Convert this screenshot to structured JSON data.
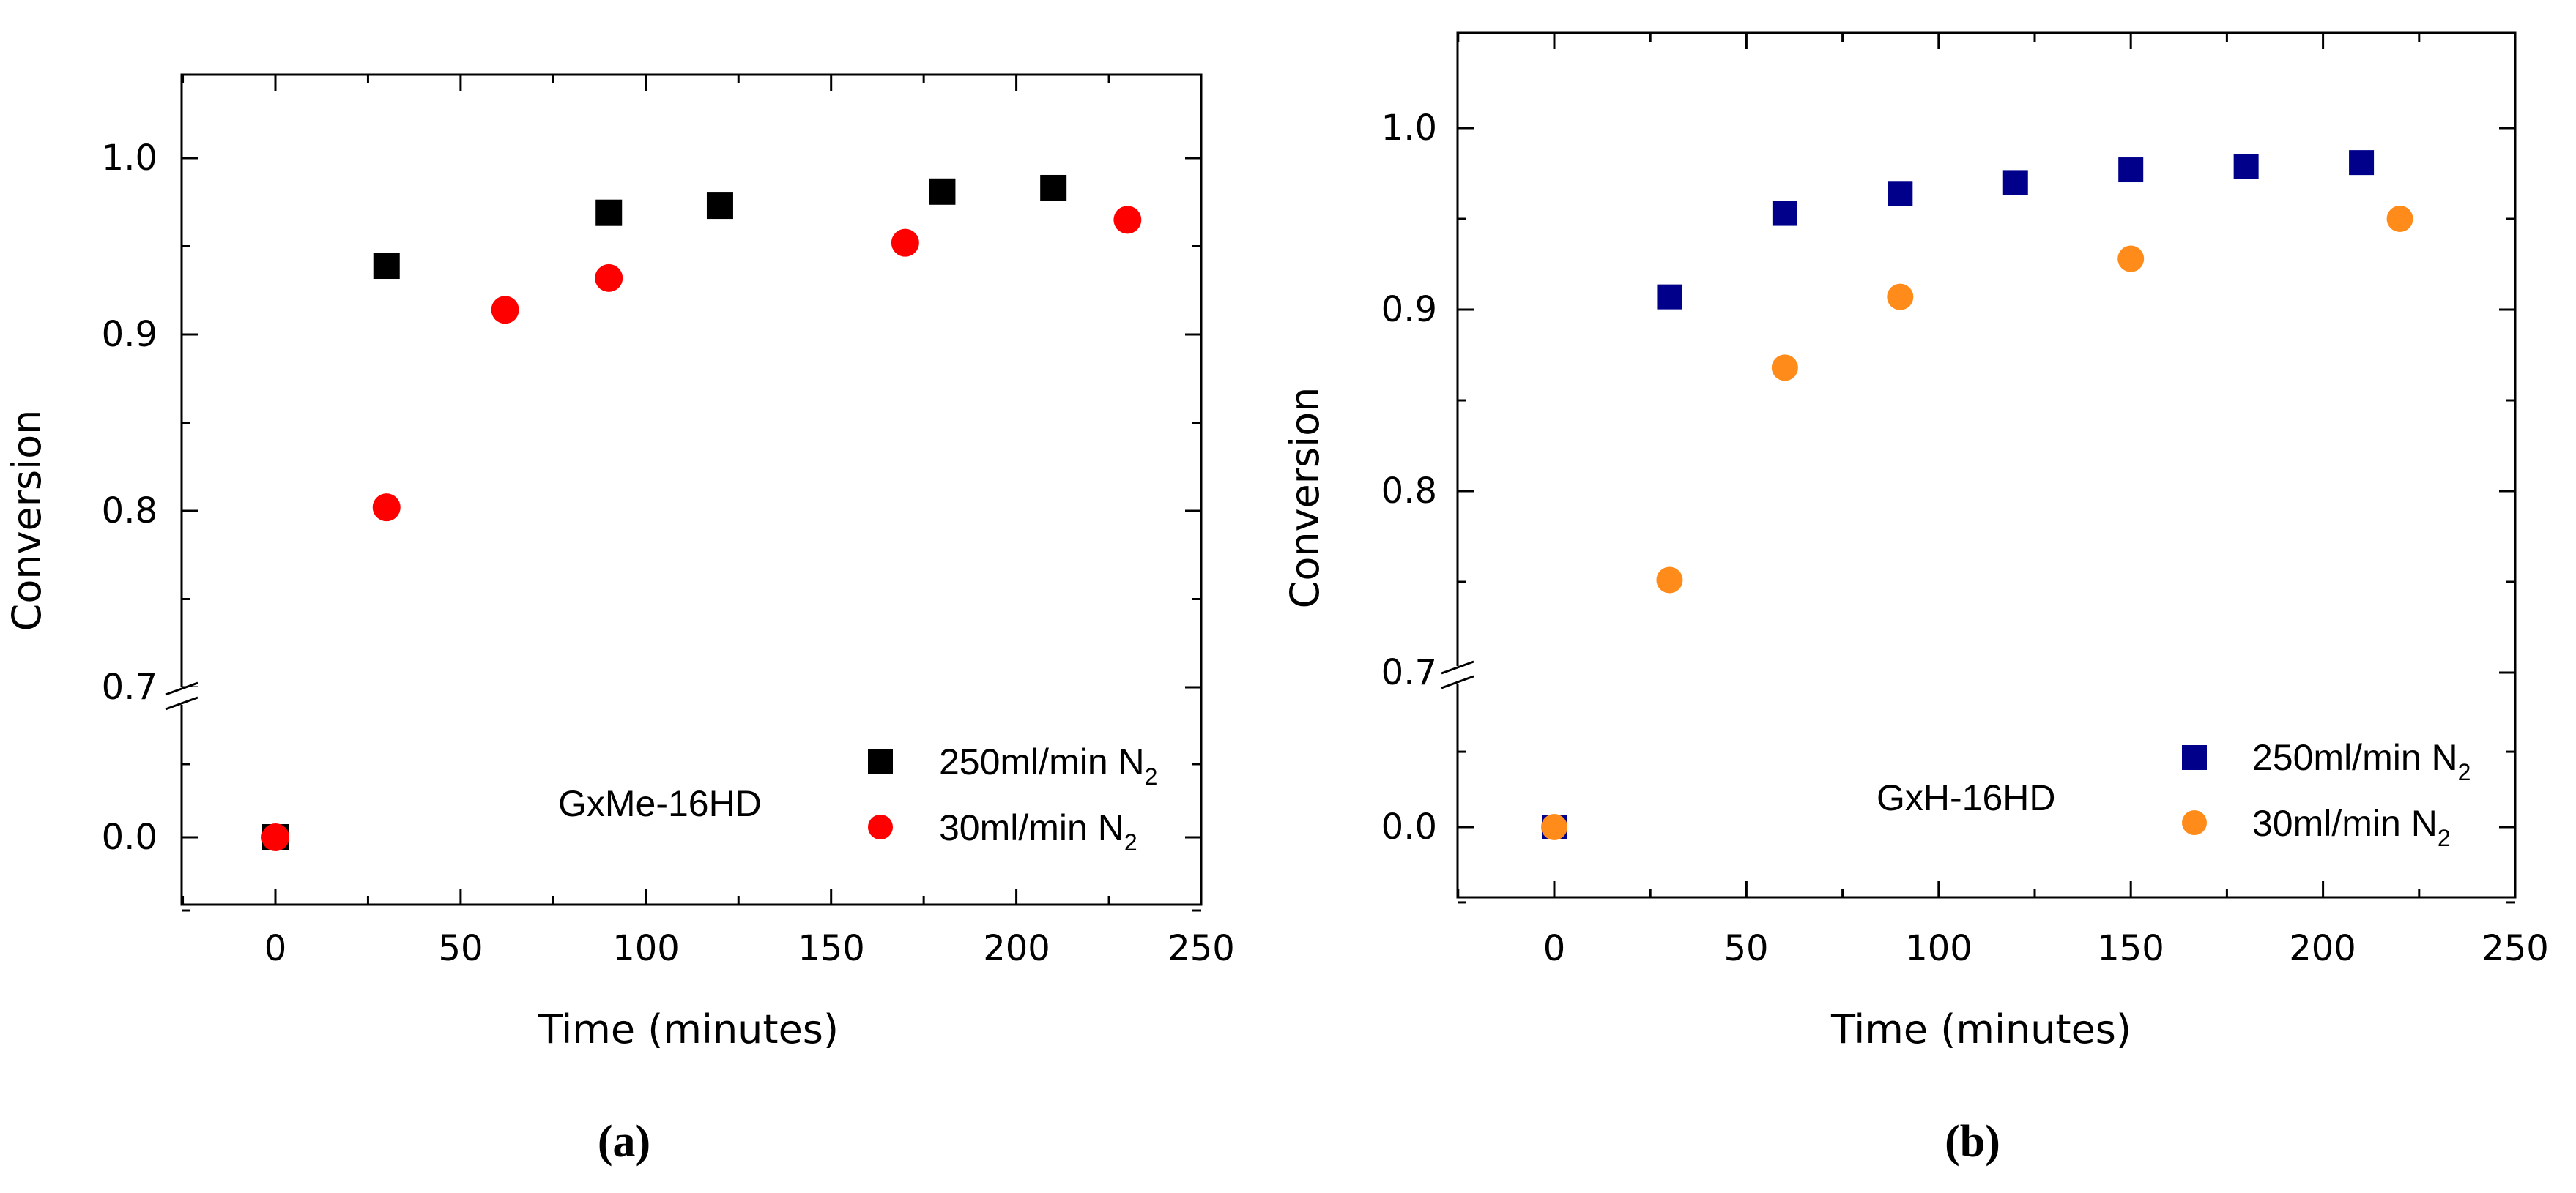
{
  "figure": {
    "caption_a": "(a)",
    "caption_b": "(b)"
  },
  "chart_data": [
    {
      "type": "scatter",
      "panel": "a",
      "title": "",
      "annotation": "GxMe-16HD",
      "xlabel": "Time (minutes)",
      "ylabel": "Conversion",
      "xlim": [
        -25,
        250
      ],
      "x_ticks": [
        0,
        50,
        100,
        150,
        200,
        250
      ],
      "y_ticks": [
        0.0,
        0.7,
        0.8,
        0.9,
        1.0
      ],
      "y_tick_labels": [
        "0.0",
        "0.7",
        "0.8",
        "0.9",
        "1.0"
      ],
      "y_axis_break": {
        "lower_range": [
          -0.05,
          0.05
        ],
        "upper_range": [
          0.7,
          1.05
        ]
      },
      "legend_position": "bottom-right",
      "series": [
        {
          "name": "250ml/min N2",
          "legend_main": "250ml/min N",
          "legend_sub": "2",
          "marker": "square",
          "color": "#000000",
          "x": [
            0,
            30,
            90,
            120,
            180,
            210
          ],
          "y": [
            0.0,
            0.939,
            0.969,
            0.973,
            0.981,
            0.983
          ]
        },
        {
          "name": "30ml/min N2",
          "legend_main": "30ml/min N",
          "legend_sub": "2",
          "marker": "circle",
          "color": "#ff0000",
          "x": [
            0,
            30,
            62,
            90,
            170,
            230
          ],
          "y": [
            0.0,
            0.802,
            0.914,
            0.932,
            0.952,
            0.965
          ]
        }
      ]
    },
    {
      "type": "scatter",
      "panel": "b",
      "title": "",
      "annotation": "GxH-16HD",
      "xlabel": "Time (minutes)",
      "ylabel": "Conversion",
      "xlim": [
        -25,
        250
      ],
      "x_ticks": [
        0,
        50,
        100,
        150,
        200,
        250
      ],
      "y_ticks": [
        0.0,
        0.7,
        0.8,
        0.9,
        1.0
      ],
      "y_tick_labels": [
        "0.0",
        "0.7",
        "0.8",
        "0.9",
        "1.0"
      ],
      "y_axis_break": {
        "lower_range": [
          -0.05,
          0.05
        ],
        "upper_range": [
          0.7,
          1.05
        ]
      },
      "legend_position": "bottom-right",
      "series": [
        {
          "name": "250ml/min N2",
          "legend_main": "250ml/min N",
          "legend_sub": "2",
          "marker": "square",
          "color": "#00008b",
          "x": [
            0,
            30,
            60,
            90,
            120,
            150,
            180,
            210
          ],
          "y": [
            0.0,
            0.907,
            0.953,
            0.964,
            0.97,
            0.977,
            0.979,
            0.981
          ]
        },
        {
          "name": "30ml/min N2",
          "legend_main": "30ml/min N",
          "legend_sub": "2",
          "marker": "circle",
          "color": "#ff8c1a",
          "x": [
            0,
            30,
            60,
            90,
            150,
            220
          ],
          "y": [
            0.0,
            0.751,
            0.868,
            0.907,
            0.928,
            0.95
          ]
        }
      ]
    }
  ]
}
